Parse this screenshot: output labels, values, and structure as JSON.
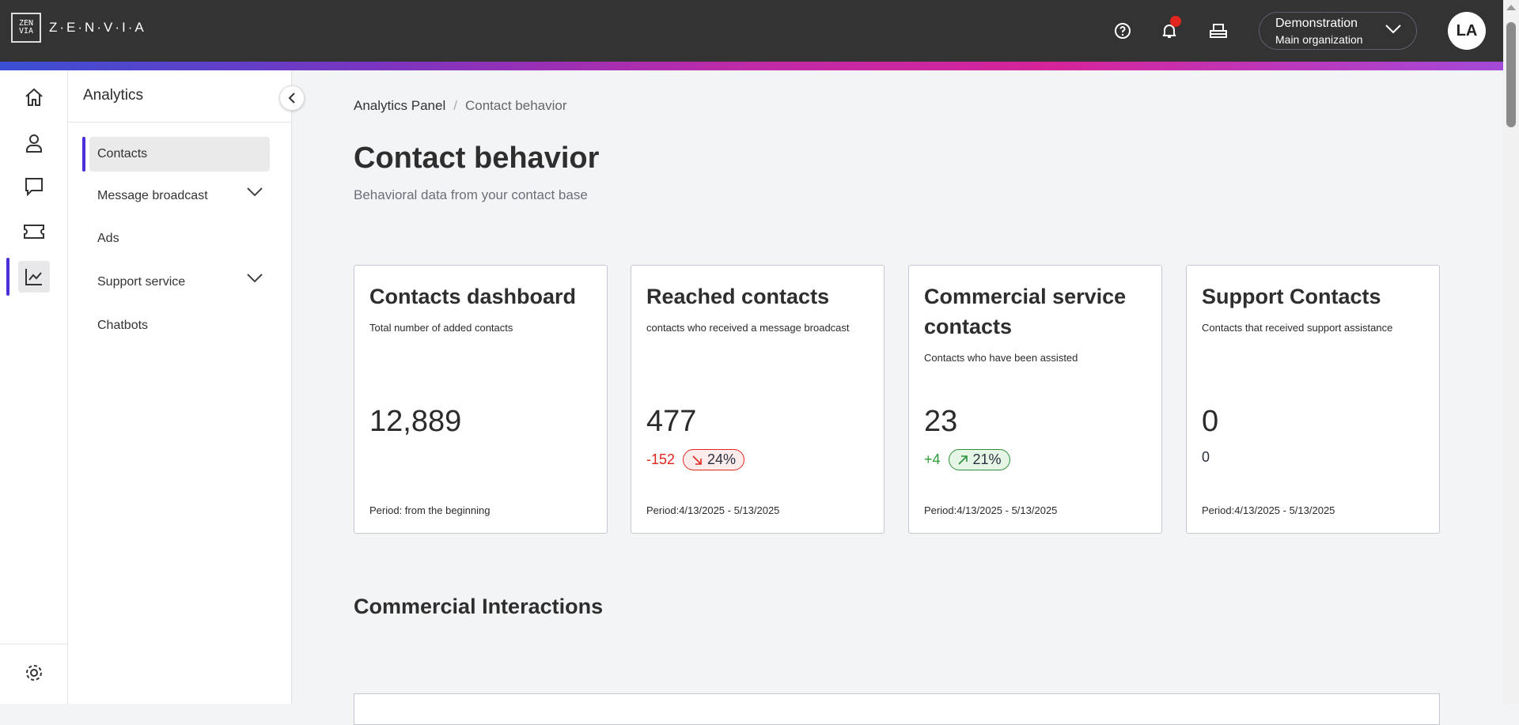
{
  "header": {
    "logo_text": "Z·E·N·V·I·A",
    "logo_mark": "ZENVIA",
    "org_name": "Demonstration",
    "org_sub": "Main organization",
    "avatar": "LA",
    "colors": {
      "topbar": "#333333",
      "notification": "#e0261f",
      "accent": "#4b2fd9"
    }
  },
  "rail": {
    "icons": [
      "home-icon",
      "user-icon",
      "chat-icon",
      "ticket-icon",
      "analytics-icon",
      "gear-icon"
    ]
  },
  "sidebar": {
    "title": "Analytics",
    "items": [
      {
        "label": "Contacts",
        "active": true
      },
      {
        "label": "Message broadcast",
        "expandable": true
      },
      {
        "label": "Ads"
      },
      {
        "label": "Support service",
        "expandable": true
      },
      {
        "label": "Chatbots"
      }
    ]
  },
  "breadcrumb": {
    "parent": "Analytics Panel",
    "separator": "/",
    "current": "Contact behavior"
  },
  "page": {
    "title": "Contact behavior",
    "subtitle": "Behavioral data from your contact base"
  },
  "cards": [
    {
      "title": "Contacts dashboard",
      "desc": "Total number of added contacts",
      "value": "12,889",
      "period": "Period: from the beginning"
    },
    {
      "title": "Reached contacts",
      "desc": "contacts who received a message broadcast",
      "value": "477",
      "delta": "-152",
      "pct": "24%",
      "trend": "down",
      "period": "Period:4/13/2025 - 5/13/2025"
    },
    {
      "title": "Commercial service contacts",
      "desc": "Contacts who have been assisted",
      "value": "23",
      "delta": "+4",
      "pct": "21%",
      "trend": "up",
      "period": "Period:4/13/2025 - 5/13/2025"
    },
    {
      "title": "Support Contacts",
      "desc": "Contacts that received support assistance",
      "value": "0",
      "delta": "0",
      "period": "Period:4/13/2025 - 5/13/2025"
    }
  ],
  "section": {
    "title": "Commercial Interactions"
  }
}
